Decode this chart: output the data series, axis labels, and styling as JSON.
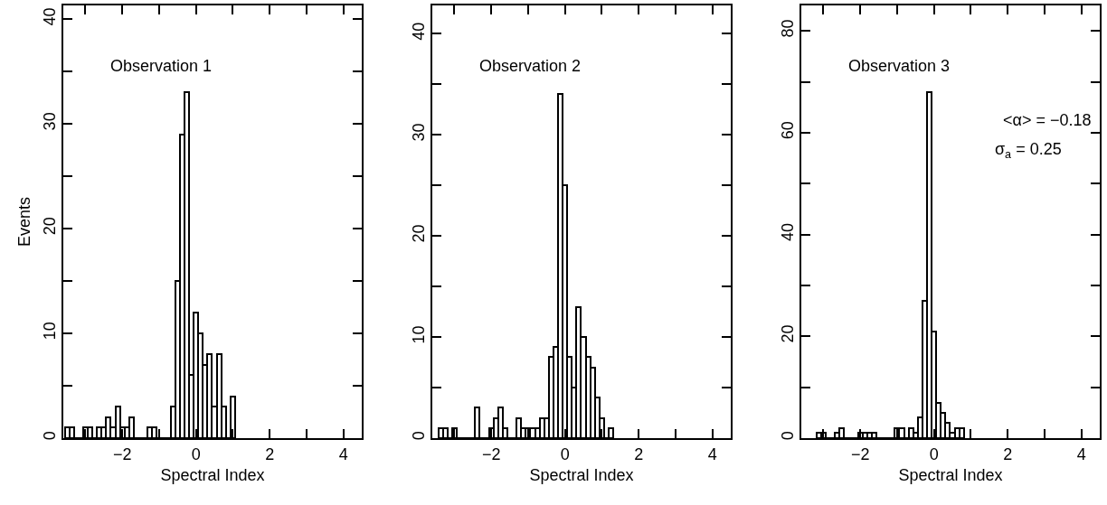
{
  "chart_data": [
    {
      "type": "histogram",
      "color": "#000000",
      "xlabel": "Spectral Index",
      "ylabel": "Events",
      "annotations": [
        "Observation 1"
      ],
      "grid": false,
      "legend": false,
      "bins": [
        -3.5625,
        -3.4375,
        -3.3125,
        -3.1875,
        -3.0625,
        -2.9375,
        -2.8125,
        -2.6875,
        -2.5625,
        -2.4375,
        -2.3125,
        -2.1875,
        -2.0625,
        -1.9375,
        -1.8125,
        -1.6875,
        -1.5625,
        -1.4375,
        -1.3125,
        -1.1875,
        -1.0625,
        -0.9375,
        -0.8125,
        -0.6875,
        -0.5625,
        -0.4375,
        -0.3125,
        -0.1875,
        -0.0625,
        0.0625,
        0.1875,
        0.3125,
        0.4375,
        0.5625,
        0.6875,
        0.8125,
        0.9375,
        1.0625
      ],
      "values": [
        1,
        1,
        0,
        0,
        1,
        1,
        0,
        1,
        1,
        2,
        1,
        3,
        1,
        1,
        2,
        0,
        0,
        0,
        1,
        1,
        0,
        0,
        0,
        3,
        15,
        29,
        33,
        6,
        12,
        10,
        7,
        8,
        3,
        8,
        3,
        0,
        4
      ],
      "xlim": [
        -3.6,
        4.5
      ],
      "xticks": [
        {
          "value": -3,
          "label": null
        },
        {
          "value": -2,
          "label": "−2"
        },
        {
          "value": -1,
          "label": null
        },
        0,
        {
          "value": 1,
          "label": null
        },
        2,
        {
          "value": 3,
          "label": null
        },
        4
      ],
      "ylim": [
        0,
        41.3
      ],
      "yticks": [
        0,
        {
          "value": 5,
          "label": null
        },
        10,
        {
          "value": 15,
          "label": null
        },
        20,
        {
          "value": 25,
          "label": null
        },
        30,
        {
          "value": 35,
          "label": null
        },
        40
      ]
    },
    {
      "type": "histogram",
      "color": "#000000",
      "xlabel": "Spectral Index",
      "annotations": [
        "Observation 2"
      ],
      "grid": false,
      "legend": false,
      "bins": [
        -3.4375,
        -3.3125,
        -3.1875,
        -3.0625,
        -2.9375,
        -2.8125,
        -2.6875,
        -2.5625,
        -2.4375,
        -2.3125,
        -2.1875,
        -2.0625,
        -1.9375,
        -1.8125,
        -1.6875,
        -1.5625,
        -1.4375,
        -1.3125,
        -1.1875,
        -1.0625,
        -0.9375,
        -0.8125,
        -0.6875,
        -0.5625,
        -0.4375,
        -0.3125,
        -0.1875,
        -0.0625,
        0.0625,
        0.1875,
        0.3125,
        0.4375,
        0.5625,
        0.6875,
        0.8125,
        0.9375,
        1.0625,
        1.1875,
        1.3125
      ],
      "values": [
        1,
        1,
        0,
        1,
        0,
        0,
        0,
        0,
        3,
        0,
        0,
        1,
        2,
        3,
        1,
        0,
        0,
        2,
        1,
        1,
        1,
        1,
        2,
        2,
        8,
        9,
        34,
        25,
        8,
        5,
        13,
        10,
        8,
        7,
        4,
        2,
        0,
        1
      ],
      "xlim": [
        -3.6,
        4.5
      ],
      "xticks": [
        {
          "value": -3,
          "label": null
        },
        {
          "value": -2,
          "label": "−2"
        },
        {
          "value": -1,
          "label": null
        },
        0,
        {
          "value": 1,
          "label": null
        },
        2,
        {
          "value": 3,
          "label": null
        },
        4
      ],
      "ylim": [
        0,
        42.8
      ],
      "yticks": [
        0,
        {
          "value": 5,
          "label": null
        },
        10,
        {
          "value": 15,
          "label": null
        },
        20,
        {
          "value": 25,
          "label": null
        },
        30,
        {
          "value": 35,
          "label": null
        },
        40
      ]
    },
    {
      "type": "histogram",
      "color": "#000000",
      "xlabel": "Spectral Index",
      "annotations": [
        "Observation 3",
        "<α> = −0.18",
        "σ$_{a}$ = 0.25"
      ],
      "grid": false,
      "legend": false,
      "bins": [
        -3.1875,
        -3.0625,
        -2.9375,
        -2.8125,
        -2.6875,
        -2.5625,
        -2.4375,
        -2.3125,
        -2.1875,
        -2.0625,
        -1.9375,
        -1.8125,
        -1.6875,
        -1.5625,
        -1.4375,
        -1.3125,
        -1.1875,
        -1.0625,
        -0.9375,
        -0.8125,
        -0.6875,
        -0.5625,
        -0.4375,
        -0.3125,
        -0.1875,
        -0.0625,
        0.0625,
        0.1875,
        0.3125,
        0.4375,
        0.5625,
        0.6875,
        0.8125
      ],
      "values": [
        1,
        1,
        0,
        0,
        1,
        2,
        0,
        0,
        0,
        1,
        1,
        1,
        1,
        0,
        0,
        0,
        0,
        2,
        2,
        0,
        2,
        1,
        4,
        27,
        68,
        21,
        7,
        5,
        3,
        1,
        2,
        2
      ],
      "xlim": [
        -3.6,
        4.5
      ],
      "xticks": [
        {
          "value": -3,
          "label": null
        },
        {
          "value": -2,
          "label": "−2"
        },
        {
          "value": -1,
          "label": null
        },
        0,
        {
          "value": 1,
          "label": null
        },
        2,
        {
          "value": 3,
          "label": null
        },
        4
      ],
      "ylim": [
        0,
        85
      ],
      "yticks": [
        0,
        {
          "value": 10,
          "label": null
        },
        20,
        {
          "value": 30,
          "label": null
        },
        40,
        {
          "value": 50,
          "label": null
        },
        60,
        {
          "value": 70,
          "label": null
        },
        80
      ]
    }
  ]
}
